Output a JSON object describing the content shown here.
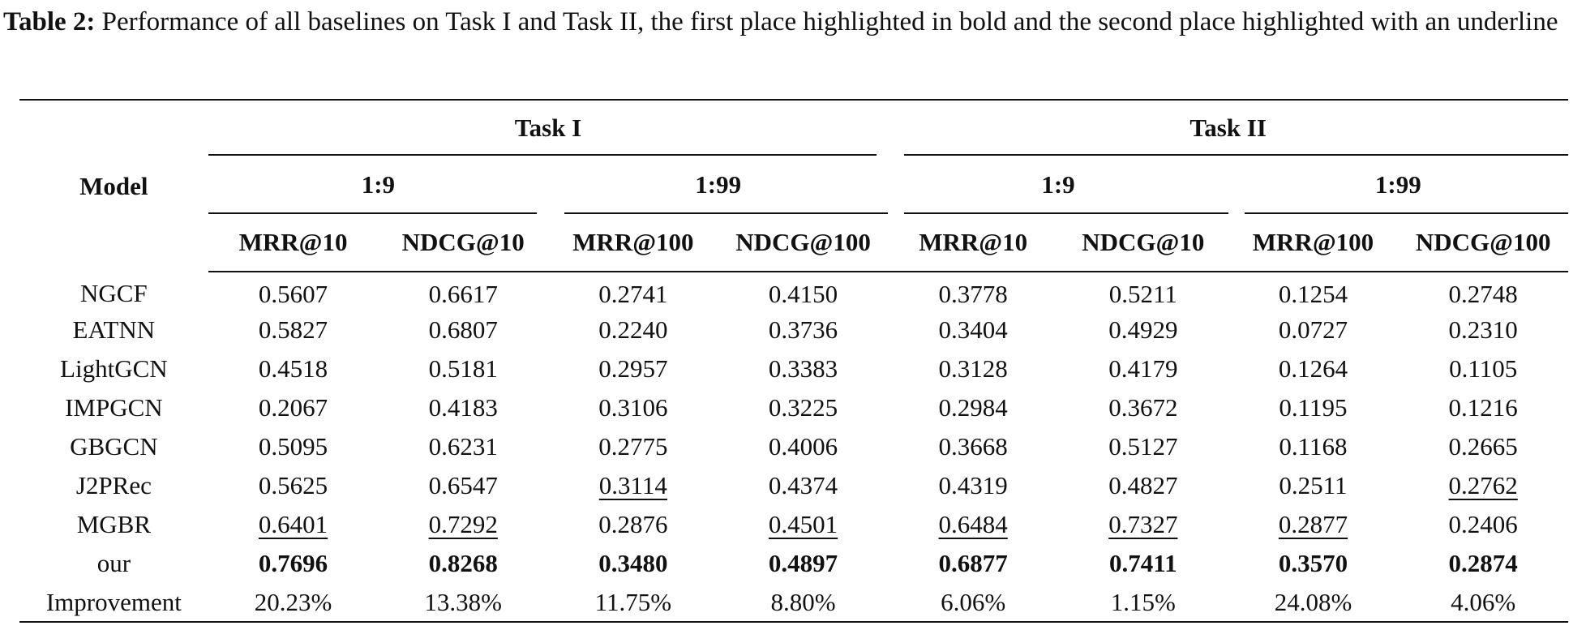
{
  "caption": {
    "label": "Table 2:",
    "text": " Performance of all baselines on Task I and Task II, the first place highlighted in bold and the second place highlighted with an underline"
  },
  "header": {
    "model": "Model",
    "task1": "Task I",
    "task2": "Task II",
    "ratios": [
      "1:9",
      "1:99",
      "1:9",
      "1:99"
    ],
    "metrics": [
      "MRR@10",
      "NDCG@10",
      "MRR@100",
      "NDCG@100",
      "MRR@10",
      "NDCG@10",
      "MRR@100",
      "NDCG@100"
    ]
  },
  "rows": [
    {
      "model": "NGCF",
      "values": [
        "0.5607",
        "0.6617",
        "0.2741",
        "0.4150",
        "0.3778",
        "0.5211",
        "0.1254",
        "0.2748"
      ]
    },
    {
      "model": "EATNN",
      "values": [
        "0.5827",
        "0.6807",
        "0.2240",
        "0.3736",
        "0.3404",
        "0.4929",
        "0.0727",
        "0.2310"
      ]
    },
    {
      "model": "LightGCN",
      "values": [
        "0.4518",
        "0.5181",
        "0.2957",
        "0.3383",
        "0.3128",
        "0.4179",
        "0.1264",
        "0.1105"
      ]
    },
    {
      "model": "IMPGCN",
      "values": [
        "0.2067",
        "0.4183",
        "0.3106",
        "0.3225",
        "0.2984",
        "0.3672",
        "0.1195",
        "0.1216"
      ]
    },
    {
      "model": "GBGCN",
      "values": [
        "0.5095",
        "0.6231",
        "0.2775",
        "0.4006",
        "0.3668",
        "0.5127",
        "0.1168",
        "0.2665"
      ]
    },
    {
      "model": "J2PRec",
      "values": [
        "0.5625",
        "0.6547",
        "0.3114",
        "0.4374",
        "0.4319",
        "0.4827",
        "0.2511",
        "0.2762"
      ]
    },
    {
      "model": "MGBR",
      "values": [
        "0.6401",
        "0.7292",
        "0.2876",
        "0.4501",
        "0.6484",
        "0.7327",
        "0.2877",
        "0.2406"
      ]
    },
    {
      "model": "our",
      "values": [
        "0.7696",
        "0.8268",
        "0.3480",
        "0.4897",
        "0.6877",
        "0.7411",
        "0.3570",
        "0.2874"
      ]
    },
    {
      "model": "Improvement",
      "values": [
        "20.23%",
        "13.38%",
        "11.75%",
        "8.80%",
        "6.06%",
        "1.15%",
        "24.08%",
        "4.06%"
      ]
    }
  ]
}
